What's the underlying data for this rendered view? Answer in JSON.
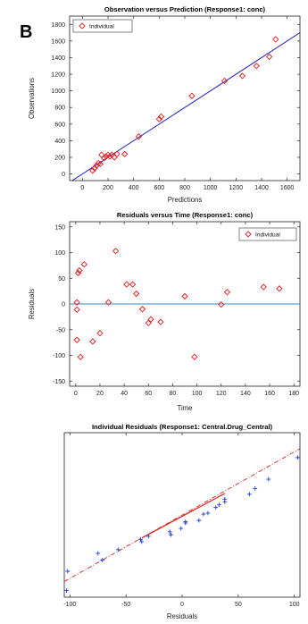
{
  "panel_label": "B",
  "colors": {
    "marker_red": "#e41a1c",
    "fit_line_blue": "#1f1fbf",
    "zero_line": "#3a86c8",
    "qq_cross": "#1f3fd9",
    "qq_ref_red": "#d62222",
    "axis": "#222222"
  },
  "chart_data": [
    {
      "type": "scatter",
      "title": "Observation versus Prediction (Response1: conc)",
      "xlabel": "Predictions",
      "ylabel": "Observations",
      "xlim": [
        -100,
        1700
      ],
      "ylim": [
        -80,
        1900
      ],
      "xticks": [
        0,
        200,
        400,
        600,
        800,
        1000,
        1200,
        1400,
        1600
      ],
      "yticks": [
        0,
        200,
        400,
        600,
        800,
        1000,
        1200,
        1400,
        1600,
        1800
      ],
      "legend": {
        "entries": [
          "Individual"
        ],
        "placement": "top-left"
      },
      "grid": false,
      "reference_line": {
        "x": [
          -100,
          1700
        ],
        "y": [
          -100,
          1700
        ]
      },
      "series": [
        {
          "name": "Individual",
          "marker": "diamond",
          "points": [
            [
              80,
              40
            ],
            [
              95,
              70
            ],
            [
              110,
              100
            ],
            [
              125,
              130
            ],
            [
              140,
              120
            ],
            [
              150,
              230
            ],
            [
              170,
              190
            ],
            [
              185,
              210
            ],
            [
              200,
              230
            ],
            [
              215,
              210
            ],
            [
              230,
              230
            ],
            [
              250,
              200
            ],
            [
              270,
              240
            ],
            [
              330,
              240
            ],
            [
              440,
              450
            ],
            [
              600,
              660
            ],
            [
              615,
              690
            ],
            [
              855,
              940
            ],
            [
              1110,
              1120
            ],
            [
              1250,
              1180
            ],
            [
              1360,
              1300
            ],
            [
              1460,
              1410
            ],
            [
              1510,
              1620
            ]
          ]
        }
      ]
    },
    {
      "type": "scatter",
      "title": "Residuals versus Time (Response1: conc)",
      "xlabel": "Time",
      "ylabel": "Residuals",
      "xlim": [
        -5,
        185
      ],
      "ylim": [
        -160,
        160
      ],
      "xticks": [
        0,
        20,
        40,
        60,
        80,
        100,
        120,
        140,
        160,
        180
      ],
      "yticks": [
        -150,
        -100,
        -50,
        0,
        50,
        100,
        150
      ],
      "legend": {
        "entries": [
          "Individual"
        ],
        "placement": "top-right"
      },
      "grid": false,
      "zero_line": 0,
      "series": [
        {
          "name": "Individual",
          "marker": "diamond",
          "points": [
            [
              1,
              3
            ],
            [
              1,
              -11
            ],
            [
              1,
              -70
            ],
            [
              2,
              60
            ],
            [
              3,
              65
            ],
            [
              4,
              -103
            ],
            [
              7,
              77
            ],
            [
              14,
              -73
            ],
            [
              20,
              -57
            ],
            [
              27,
              3
            ],
            [
              33,
              103
            ],
            [
              42,
              38
            ],
            [
              47,
              38
            ],
            [
              50,
              20
            ],
            [
              55,
              -10
            ],
            [
              60,
              -37
            ],
            [
              62,
              -30
            ],
            [
              70,
              -35
            ],
            [
              90,
              15
            ],
            [
              98,
              -103
            ],
            [
              120,
              -1
            ],
            [
              125,
              23
            ],
            [
              155,
              33
            ],
            [
              168,
              30
            ]
          ]
        }
      ]
    },
    {
      "type": "scatter",
      "title": "Individual Residuals (Response1: Central.Drug_Central)",
      "xlabel": "Residuals",
      "ylabel": "",
      "xlim": [
        -105,
        105
      ],
      "ylim": [
        -2.45,
        2.5
      ],
      "xticks": [
        -100,
        -50,
        0,
        50,
        100
      ],
      "yticks": [],
      "grid": false,
      "reference_line": {
        "x": [
          -105,
          105
        ],
        "y": [
          -1.98,
          2.02
        ]
      },
      "series": [
        {
          "marker": "cross",
          "points": [
            [
              -103,
              -2.25
            ],
            [
              -102,
              -1.67
            ],
            [
              -75,
              -1.13
            ],
            [
              -71,
              -1.33
            ],
            [
              -57,
              -1.02
            ],
            [
              -36,
              -0.78
            ],
            [
              -37,
              -0.71
            ],
            [
              -30,
              -0.62
            ],
            [
              -11,
              -0.48
            ],
            [
              -10,
              -0.57
            ],
            [
              -1,
              -0.38
            ],
            [
              3,
              -0.22
            ],
            [
              3,
              -0.18
            ],
            [
              15,
              -0.14
            ],
            [
              19,
              0.05
            ],
            [
              23,
              0.08
            ],
            [
              30,
              0.25
            ],
            [
              33,
              0.33
            ],
            [
              38,
              0.42
            ],
            [
              38,
              0.5
            ],
            [
              60,
              0.65
            ],
            [
              65,
              0.82
            ],
            [
              77,
              1.1
            ],
            [
              103,
              1.75
            ]
          ]
        }
      ]
    }
  ]
}
